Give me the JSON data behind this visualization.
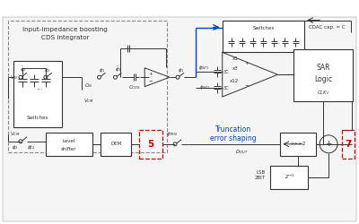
{
  "figsize": [
    4.0,
    2.5
  ],
  "dpi": 100,
  "xlim": [
    0,
    400
  ],
  "ylim": [
    0,
    250
  ],
  "bg": "white",
  "dgray": "#333333",
  "lgray": "#888888",
  "blue": "#0044cc",
  "red": "#cc0000",
  "lw": 0.7,
  "font_main": 5.0,
  "font_small": 4.0,
  "font_label": 5.5
}
